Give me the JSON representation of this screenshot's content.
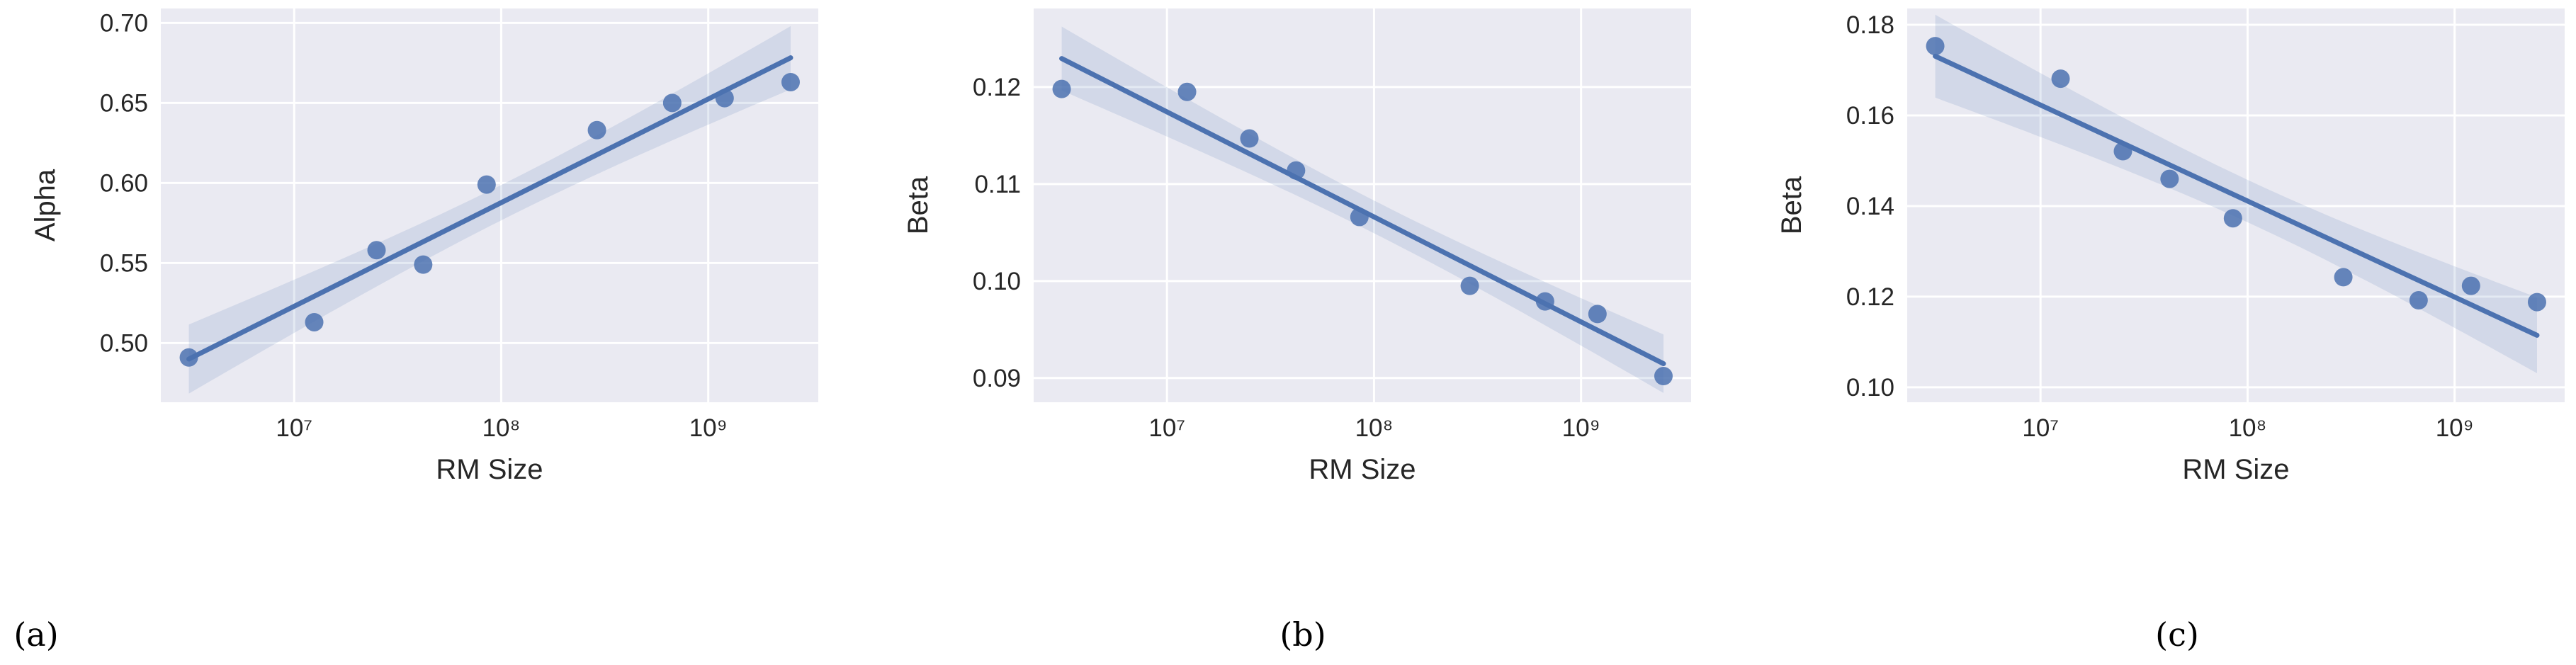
{
  "chart_data": [
    {
      "type": "scatter",
      "caption": "(a)",
      "xlabel": "RM Size",
      "ylabel": "Alpha",
      "xscale": "log",
      "grid": true,
      "regression": true,
      "color": "#4c72b0",
      "x": [
        3100000,
        12500000,
        25000000,
        42000000,
        85000000,
        290000000,
        670000000,
        1200000000,
        2500000000
      ],
      "values": [
        0.491,
        0.513,
        0.558,
        0.549,
        0.599,
        0.633,
        0.65,
        0.653,
        0.663
      ],
      "xlim": [
        2270000,
        3400000000
      ],
      "xticks": [
        {
          "value": 10000000,
          "label": "10⁷"
        },
        {
          "value": 100000000,
          "label": "10⁸"
        },
        {
          "value": 1000000000,
          "label": "10⁹"
        }
      ],
      "ylim": [
        0.463,
        0.709
      ],
      "yticks": [
        {
          "value": 0.5,
          "label": "0.50"
        },
        0.55,
        {
          "value": 0.6,
          "label": "0.60"
        },
        0.65,
        {
          "value": 0.7,
          "label": "0.70"
        }
      ]
    },
    {
      "type": "scatter",
      "caption": "(b)",
      "xlabel": "RM Size",
      "ylabel": "Beta",
      "xscale": "log",
      "grid": true,
      "regression": true,
      "color": "#4c72b0",
      "x": [
        3100000,
        12500000,
        25000000,
        42000000,
        85000000,
        290000000,
        670000000,
        1200000000,
        2500000000
      ],
      "values": [
        0.1198,
        0.1195,
        0.1147,
        0.1114,
        0.1066,
        0.0995,
        0.0979,
        0.0966,
        0.0902
      ],
      "xlim": [
        2270000,
        3400000000
      ],
      "xticks": [
        {
          "value": 10000000,
          "label": "10⁷"
        },
        {
          "value": 100000000,
          "label": "10⁸"
        },
        {
          "value": 1000000000,
          "label": "10⁹"
        }
      ],
      "ylim": [
        0.0875,
        0.1281
      ],
      "yticks": [
        0.09,
        {
          "value": 0.1,
          "label": "0.10"
        },
        0.11,
        0.12
      ]
    },
    {
      "type": "scatter",
      "caption": "(c)",
      "xlabel": "RM Size",
      "ylabel": "Beta",
      "xscale": "log",
      "grid": true,
      "regression": true,
      "color": "#4c72b0",
      "x": [
        3100000,
        12500000,
        25000000,
        42000000,
        85000000,
        290000000,
        670000000,
        1200000000,
        2500000000
      ],
      "values": [
        0.1753,
        0.1681,
        0.1521,
        0.146,
        0.1373,
        0.1243,
        0.1192,
        0.1224,
        0.1188
      ],
      "xlim": [
        2270000,
        3400000000
      ],
      "xticks": [
        {
          "value": 10000000,
          "label": "10⁷"
        },
        {
          "value": 100000000,
          "label": "10⁸"
        },
        {
          "value": 1000000000,
          "label": "10⁹"
        }
      ],
      "ylim": [
        0.0967,
        0.1836
      ],
      "yticks": [
        {
          "value": 0.1,
          "label": "0.10"
        },
        0.12,
        0.14,
        0.16,
        0.18
      ]
    }
  ]
}
